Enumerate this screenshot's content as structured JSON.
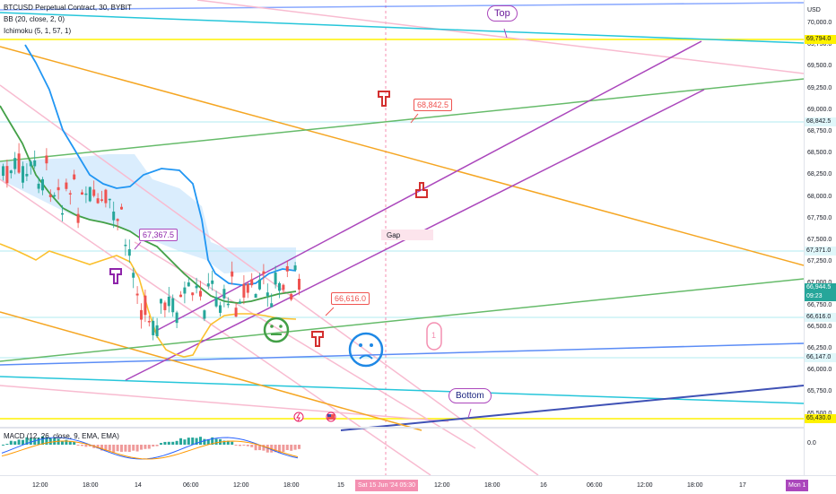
{
  "legend": {
    "symbol": "BTCUSD Perpetual Contract, 30, BYBIT",
    "bb": "BB (20, close, 2, 0)",
    "ichimoku": "Ichimoku (5, 1, 57, 1)",
    "macd": "MACD (12, 26, close, 9, EMA, EMA)"
  },
  "price_axis": {
    "currency": "USD",
    "ticks": [
      "70,000.0",
      "69,750.0",
      "69,500.0",
      "69,250.0",
      "69,000.0",
      "68,750.0",
      "68,500.0",
      "68,250.0",
      "68,000.0",
      "67,750.0",
      "67,500.0",
      "67,250.0",
      "67,000.0",
      "66,750.0",
      "66,500.0",
      "66,250.0",
      "66,000.0",
      "65,750.0",
      "65,500.0"
    ],
    "tags": {
      "top_line": "69,794.0",
      "tp": "68,842.5",
      "ichimoku": "67,371.0",
      "last_price": "66,944.5",
      "countdown": "09:23",
      "entry": "66,616.0",
      "line_low": "66,147.0",
      "bottom_line": "65,430.0"
    },
    "macd_zero": "0.0"
  },
  "time_axis": {
    "ticks": [
      "12:00",
      "18:00",
      "14",
      "06:00",
      "12:00",
      "18:00",
      "15",
      "12:00",
      "18:00",
      "16",
      "06:00",
      "12:00",
      "18:00",
      "17"
    ],
    "cursor_label": "Sat 15 Jun '24  05:30",
    "next_label": "Mon 1"
  },
  "annotations": {
    "label_68842": "68,842.5",
    "label_67367": "67,367.5",
    "label_66616": "66,616.0",
    "gap": "Gap",
    "top": "Top",
    "bottom": "Bottom",
    "one": "1"
  },
  "icons": {
    "pointer_down_red": "pointing-hand-down-icon",
    "pointer_up_red": "pointing-hand-up-icon",
    "pointer_purple": "pointing-hand-down-icon",
    "neutral_face": "neutral-face-icon",
    "sad_face": "sad-face-icon",
    "lightning": "lightning-icon",
    "flag": "us-flag-icon"
  },
  "colors": {
    "bull": "#26a69a",
    "bear": "#ef5350",
    "bb_basis": "#2962ff",
    "ichimoku_cloud": "#bbdefb",
    "orange": "#f5a623",
    "purple": "#ab47bc",
    "green": "#66bb6a",
    "cyan": "#26c6da",
    "pink": "#f8bbd0",
    "yellow": "#fff200"
  }
}
